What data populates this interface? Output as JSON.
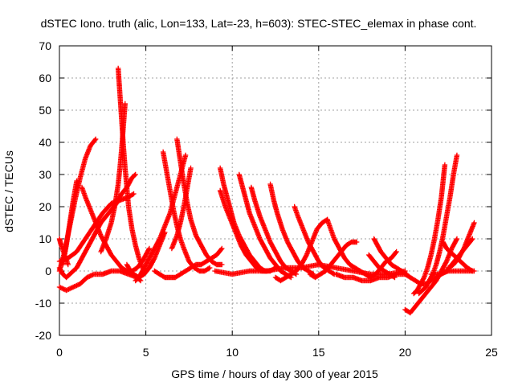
{
  "chart_data": {
    "type": "scatter",
    "title": "dSTEC Iono. truth (alic, Lon=133, Lat=-23, h=603): STEC-STEC_elemax in phase cont.",
    "xlabel": "GPS time / hours of day 300 of year 2015",
    "ylabel": "dSTEC  / TECUs",
    "xlim": [
      0,
      25
    ],
    "ylim": [
      -20,
      70
    ],
    "xticks": [
      0,
      5,
      10,
      15,
      20,
      25
    ],
    "yticks": [
      -20,
      -10,
      0,
      10,
      20,
      30,
      40,
      50,
      60,
      70
    ],
    "grid": true,
    "marker": "+",
    "color": "#ff0000",
    "series": [
      {
        "x": [
          0.0,
          0.3,
          0.6,
          0.9,
          1.2,
          1.5,
          1.8,
          2.1
        ],
        "y": [
          0,
          6,
          14,
          22,
          29,
          35,
          39,
          41
        ]
      },
      {
        "x": [
          0.2,
          0.4,
          0.6,
          0.8,
          1.0
        ],
        "y": [
          2,
          8,
          15,
          22,
          28
        ]
      },
      {
        "x": [
          0.0,
          0.2,
          0.4,
          0.6,
          0.8,
          1.0,
          1.2,
          1.5,
          1.8,
          2.1,
          2.4,
          2.7,
          3.0,
          3.3,
          3.6,
          3.9,
          4.2,
          4.4
        ],
        "y": [
          1,
          -1,
          -2,
          -1,
          0,
          1,
          3,
          6,
          9,
          12,
          15,
          17,
          19,
          21,
          24,
          26,
          29,
          30
        ]
      },
      {
        "x": [
          0.0,
          0.1,
          0.3,
          0.5
        ],
        "y": [
          10,
          8,
          5,
          2
        ]
      },
      {
        "x": [
          0.0,
          0.5,
          1.0,
          1.5,
          2.0,
          2.5,
          3.0,
          3.5,
          4.0,
          4.3
        ],
        "y": [
          3,
          4,
          6,
          10,
          14,
          18,
          21,
          22,
          23,
          24
        ]
      },
      {
        "x": [
          0.0,
          0.4,
          0.8,
          1.2,
          1.6,
          2.0,
          2.5,
          3.0,
          3.5,
          4.0,
          4.5,
          4.7
        ],
        "y": [
          -5,
          -6,
          -5,
          -4,
          -2,
          -1,
          -1,
          0,
          0,
          -1,
          -2,
          -3
        ]
      },
      {
        "x": [
          1.3,
          1.5,
          1.8,
          2.1,
          2.4,
          2.7,
          3.0,
          3.3,
          3.6,
          3.9,
          4.2,
          4.5,
          4.8,
          5.0,
          5.2
        ],
        "y": [
          26,
          23,
          19,
          15,
          11,
          8,
          5,
          3,
          1,
          0,
          0,
          1,
          3,
          5,
          7
        ]
      },
      {
        "x": [
          3.4,
          3.5,
          3.6,
          3.7,
          3.8,
          3.9,
          4.0,
          4.2,
          4.4,
          4.6,
          4.8,
          5.0,
          5.2,
          5.4
        ],
        "y": [
          63,
          55,
          47,
          39,
          32,
          26,
          20,
          13,
          8,
          4,
          1,
          0,
          1,
          3
        ]
      },
      {
        "x": [
          3.8,
          3.7,
          3.6,
          3.5,
          3.4,
          3.2,
          3.0,
          2.7,
          2.4
        ],
        "y": [
          52,
          45,
          38,
          32,
          27,
          20,
          15,
          10,
          6
        ]
      },
      {
        "x": [
          3.9,
          4.1,
          4.3,
          4.6,
          4.9,
          5.2,
          5.5,
          5.8,
          6.1
        ],
        "y": [
          2,
          0,
          -1,
          -2,
          -1,
          1,
          4,
          8,
          12
        ]
      },
      {
        "x": [
          4.4,
          4.6,
          4.8,
          5.0,
          5.2,
          5.5,
          5.8,
          6.1,
          6.4,
          6.7,
          7.0,
          7.3
        ],
        "y": [
          -3,
          -2,
          0,
          2,
          4,
          7,
          10,
          14,
          18,
          24,
          30,
          36
        ]
      },
      {
        "x": [
          6.0,
          6.2,
          6.4,
          6.6,
          6.8,
          7.0,
          7.2,
          7.5,
          7.8,
          8.1,
          8.4,
          8.7
        ],
        "y": [
          37,
          31,
          25,
          19,
          14,
          10,
          7,
          3,
          1,
          0,
          0,
          1
        ]
      },
      {
        "x": [
          6.8,
          7.0,
          7.2,
          7.4,
          7.6,
          7.9,
          8.2,
          8.5,
          8.8,
          9.1,
          9.4
        ],
        "y": [
          41,
          34,
          27,
          21,
          16,
          11,
          8,
          5,
          3,
          2,
          2
        ]
      },
      {
        "x": [
          7.6,
          7.4,
          7.2,
          7.0,
          6.8,
          6.5
        ],
        "y": [
          32,
          26,
          20,
          15,
          11,
          7
        ]
      },
      {
        "x": [
          5.5,
          5.8,
          6.1,
          6.4,
          6.7,
          7.0,
          7.3,
          7.6,
          7.9,
          8.2,
          8.5,
          8.8,
          9.1,
          9.4
        ],
        "y": [
          0,
          -1,
          -2,
          -2,
          -2,
          -1,
          0,
          1,
          2,
          2,
          3,
          4,
          5,
          7
        ]
      },
      {
        "x": [
          9.3,
          9.5,
          9.7,
          9.9,
          10.1,
          10.4,
          10.7,
          11.0,
          11.3,
          11.6,
          11.9,
          12.2,
          12.5
        ],
        "y": [
          32,
          27,
          23,
          19,
          15,
          11,
          8,
          5,
          3,
          1,
          0,
          0,
          1
        ]
      },
      {
        "x": [
          9.3,
          9.6,
          9.9,
          10.2,
          10.5,
          10.8,
          11.1,
          11.4,
          11.7,
          12.0
        ],
        "y": [
          25,
          20,
          16,
          12,
          8,
          5,
          3,
          1,
          0,
          0
        ]
      },
      {
        "x": [
          10.4,
          10.6,
          10.8,
          11.0,
          11.3,
          11.6,
          11.9,
          12.2,
          12.5,
          12.8,
          13.1,
          13.4
        ],
        "y": [
          30,
          26,
          22,
          18,
          14,
          10,
          7,
          4,
          2,
          0,
          -1,
          -2
        ]
      },
      {
        "x": [
          11.1,
          11.3,
          11.6,
          11.9,
          12.2,
          12.5,
          12.8,
          13.1,
          13.4,
          13.7
        ],
        "y": [
          26,
          22,
          17,
          13,
          9,
          6,
          3,
          1,
          0,
          -1
        ]
      },
      {
        "x": [
          12.2,
          12.4,
          12.6,
          12.9,
          13.2,
          13.5,
          13.8,
          14.1,
          14.4,
          14.7
        ],
        "y": [
          27,
          22,
          18,
          13,
          9,
          6,
          3,
          1,
          0,
          -1
        ]
      },
      {
        "x": [
          13.6,
          13.8,
          14.1,
          14.4,
          14.7,
          15.0,
          15.3,
          15.6,
          15.9
        ],
        "y": [
          20,
          17,
          13,
          9,
          6,
          3,
          1,
          0,
          -1
        ]
      },
      {
        "x": [
          12.5,
          12.8,
          13.1,
          13.4,
          13.7,
          14.0,
          14.3,
          14.6,
          14.9,
          15.2,
          15.5
        ],
        "y": [
          -2,
          -3,
          -2,
          -1,
          0,
          2,
          5,
          9,
          13,
          15,
          16
        ]
      },
      {
        "x": [
          15.5,
          15.7,
          15.9,
          16.2,
          16.5,
          16.8,
          17.1,
          17.4,
          17.7,
          18.0
        ],
        "y": [
          16,
          13,
          10,
          7,
          4,
          2,
          1,
          0,
          -1,
          -2
        ]
      },
      {
        "x": [
          14.5,
          14.8,
          15.1,
          15.4,
          15.7,
          16.0,
          16.3,
          16.6,
          16.9,
          17.2
        ],
        "y": [
          -1,
          -2,
          -1,
          0,
          2,
          4,
          6,
          8,
          9,
          9
        ]
      },
      {
        "x": [
          9.0,
          10.0,
          11.0,
          12.0,
          13.0,
          14.0,
          15.0,
          16.0,
          17.0,
          18.0,
          19.0,
          20.0
        ],
        "y": [
          0,
          -1,
          0,
          0,
          1,
          1,
          2,
          1,
          0,
          -1,
          -1,
          0
        ]
      },
      {
        "x": [
          16.0,
          16.5,
          17.0,
          17.5,
          18.0,
          18.5,
          19.0,
          19.5,
          20.0
        ],
        "y": [
          -1,
          -2,
          -2,
          -3,
          -3,
          -2,
          -2,
          -1,
          -1
        ]
      },
      {
        "x": [
          18.2,
          18.4,
          18.6,
          18.9,
          19.2,
          19.5,
          19.8,
          20.1
        ],
        "y": [
          10,
          8,
          6,
          4,
          2,
          1,
          0,
          -1
        ]
      },
      {
        "x": [
          17.9,
          18.2,
          18.5,
          18.8,
          19.1,
          19.4
        ],
        "y": [
          5,
          3,
          1,
          0,
          -1,
          -2
        ]
      },
      {
        "x": [
          18.0,
          18.3,
          18.6,
          18.9,
          19.2,
          19.5
        ],
        "y": [
          -2,
          -1,
          1,
          3,
          4,
          6
        ]
      },
      {
        "x": [
          20.0,
          20.3,
          20.6,
          20.9,
          21.2,
          21.5,
          21.8,
          22.1,
          22.4,
          22.7,
          23.0
        ],
        "y": [
          -12,
          -13,
          -11,
          -9,
          -7,
          -5,
          -3,
          0,
          3,
          7,
          10
        ]
      },
      {
        "x": [
          20.0,
          20.3,
          20.6,
          20.9,
          21.2,
          21.5,
          21.8,
          22.1,
          22.4,
          22.7,
          23.0,
          23.3,
          23.6,
          23.9
        ],
        "y": [
          -1,
          -2,
          -3,
          -4,
          -4,
          -3,
          -2,
          -1,
          0,
          2,
          4,
          6,
          8,
          10
        ]
      },
      {
        "x": [
          20.5,
          20.7,
          20.9,
          21.1,
          21.3,
          21.5,
          21.7,
          21.9,
          22.1,
          22.3
        ],
        "y": [
          -7,
          -6,
          -4,
          -2,
          1,
          5,
          10,
          16,
          23,
          33
        ]
      },
      {
        "x": [
          20.8,
          21.0,
          21.2,
          21.4,
          21.6,
          21.8,
          22.0,
          22.2,
          22.4,
          22.6,
          22.8,
          23.0
        ],
        "y": [
          -7,
          -6,
          -5,
          -3,
          -1,
          2,
          6,
          11,
          17,
          23,
          30,
          36
        ]
      },
      {
        "x": [
          22.2,
          22.4,
          22.6,
          22.8,
          23.0,
          23.2,
          23.4,
          23.6,
          23.9
        ],
        "y": [
          9,
          7,
          6,
          5,
          4,
          3,
          2,
          1,
          0
        ]
      },
      {
        "x": [
          22.5,
          22.8,
          23.1,
          23.4,
          23.7,
          24.0
        ],
        "y": [
          1,
          2,
          4,
          7,
          11,
          15
        ]
      },
      {
        "x": [
          21.5,
          22.0,
          22.5,
          23.0,
          23.5,
          24.0
        ],
        "y": [
          -1,
          -1,
          0,
          0,
          0,
          0
        ]
      }
    ]
  }
}
